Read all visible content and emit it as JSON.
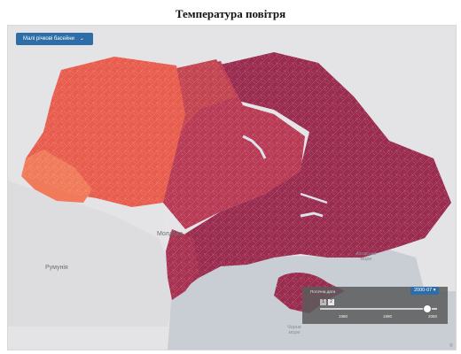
{
  "title": "Температура повітря",
  "basin_selector": {
    "label": "Малі річкові басейни",
    "icon": "chevron-down-icon"
  },
  "map_labels": {
    "moldova": "Молдова",
    "romania": "Румунія",
    "black_sea": "Чорне море",
    "azov_sea": "Азовське море"
  },
  "timeline": {
    "title": "Поточна дата",
    "buttons": [
      "1",
      "2"
    ],
    "ticks": [
      "1980",
      "1990",
      "2080"
    ],
    "current_date": "2000-07",
    "progress": 0.92
  },
  "colors": {
    "warm_west": "#e85d4d",
    "hot_southwest": "#f07a59",
    "central": "#b83a55",
    "east_south": "#9a2c4f",
    "background": "#e4e4e6",
    "accent": "#2d6ea8"
  }
}
